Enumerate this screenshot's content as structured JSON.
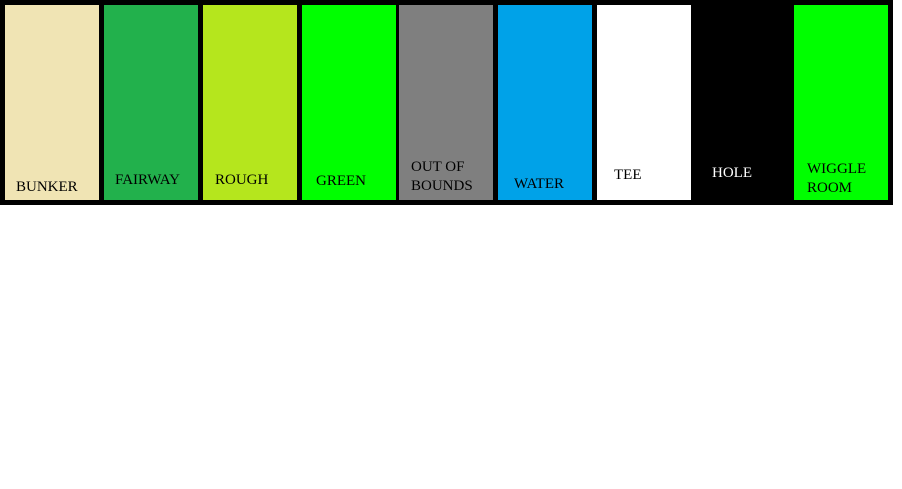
{
  "swatches": [
    {
      "label": "BUNKER",
      "color": "#f0e4b4",
      "text_color": "#000000"
    },
    {
      "label": "FAIRWAY",
      "color": "#22b14c",
      "text_color": "#000000"
    },
    {
      "label": "ROUGH",
      "color": "#b5e61d",
      "text_color": "#000000"
    },
    {
      "label": "GREEN",
      "color": "#00ff00",
      "text_color": "#000000"
    },
    {
      "label": "OUT OF\nBOUNDS",
      "color": "#7f7f7f",
      "text_color": "#000000"
    },
    {
      "label": "WATER",
      "color": "#00a2e8",
      "text_color": "#000000"
    },
    {
      "label": "TEE",
      "color": "#ffffff",
      "text_color": "#000000"
    },
    {
      "label": "HOLE",
      "color": "#000000",
      "text_color": "#ffffff"
    },
    {
      "label": "WIGGLE\nROOM",
      "color": "#00ff00",
      "text_color": "#000000"
    }
  ]
}
